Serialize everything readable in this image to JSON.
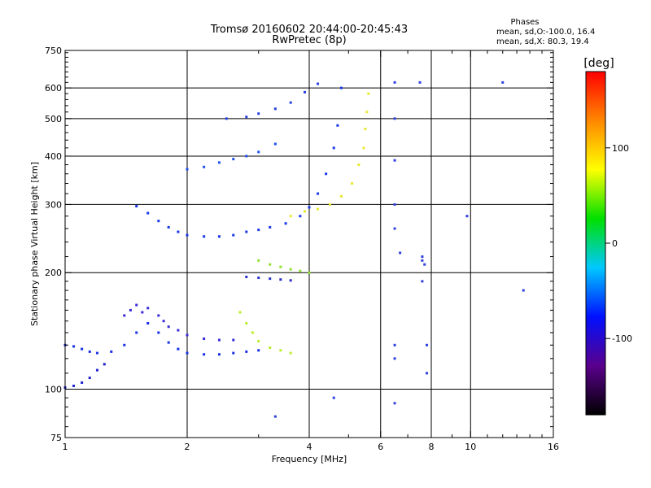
{
  "chart_data": {
    "type": "scatter",
    "title": "Tromsø 20160602 20:44:00-20:45:43",
    "subtitle": "RwPretec (8p)",
    "xlabel": "Frequency [MHz]",
    "ylabel": "Stationary phase Virtual Height [km]",
    "x_scale": "log",
    "y_scale": "log",
    "xlim": [
      1,
      16
    ],
    "ylim": [
      75,
      750
    ],
    "x_ticks": [
      1,
      2,
      4,
      6,
      8,
      10,
      16
    ],
    "y_ticks": [
      75,
      100,
      200,
      300,
      400,
      500,
      600,
      750
    ],
    "grid": true,
    "info": {
      "heading": "Phases",
      "line1": "mean, sd,O:-100.0, 16.4",
      "line2": "mean, sd,X:  80.3, 19.4"
    },
    "colorbar": {
      "label": "[deg]",
      "range": [
        -180,
        180
      ],
      "ticks": [
        100,
        0,
        -100
      ],
      "colormap": [
        "#000000",
        "#5a008c",
        "#0010ff",
        "#00c8ff",
        "#00e000",
        "#ffff00",
        "#ff8800",
        "#ff0000"
      ]
    },
    "series": [
      {
        "description": "O-mode lower F trace",
        "color": "#1830e8",
        "points": [
          [
            1.0,
            130
          ],
          [
            1.05,
            129
          ],
          [
            1.1,
            127
          ],
          [
            1.15,
            125
          ],
          [
            1.2,
            124
          ],
          [
            1.3,
            125
          ],
          [
            1.4,
            130
          ],
          [
            1.5,
            140
          ],
          [
            1.6,
            148
          ],
          [
            1.7,
            140
          ],
          [
            1.8,
            132
          ],
          [
            1.9,
            127
          ],
          [
            2.0,
            124
          ],
          [
            2.2,
            123
          ],
          [
            2.4,
            123
          ],
          [
            2.6,
            124
          ],
          [
            2.8,
            125
          ],
          [
            3.0,
            126
          ]
        ]
      },
      {
        "description": "E-region rise",
        "color": "#2020d0",
        "points": [
          [
            1.0,
            101
          ],
          [
            1.05,
            102
          ],
          [
            1.1,
            104
          ],
          [
            1.15,
            107
          ],
          [
            1.2,
            112
          ],
          [
            1.25,
            116
          ]
        ]
      },
      {
        "description": "Upper cluster 1.4-2.0 MHz",
        "color": "#3a2ad8",
        "points": [
          [
            1.4,
            155
          ],
          [
            1.45,
            160
          ],
          [
            1.5,
            165
          ],
          [
            1.55,
            158
          ],
          [
            1.6,
            162
          ],
          [
            1.7,
            155
          ],
          [
            1.75,
            150
          ],
          [
            1.8,
            145
          ],
          [
            1.9,
            142
          ],
          [
            2.0,
            138
          ],
          [
            2.2,
            135
          ],
          [
            2.4,
            134
          ],
          [
            2.6,
            134
          ]
        ]
      },
      {
        "description": "F2 O-mode trace",
        "color": "#1838e8",
        "points": [
          [
            1.5,
            297
          ],
          [
            1.6,
            285
          ],
          [
            1.7,
            272
          ],
          [
            1.8,
            262
          ],
          [
            1.9,
            255
          ],
          [
            2.0,
            250
          ],
          [
            2.2,
            248
          ],
          [
            2.4,
            248
          ],
          [
            2.6,
            250
          ],
          [
            2.8,
            255
          ],
          [
            3.0,
            258
          ],
          [
            3.2,
            262
          ],
          [
            3.5,
            268
          ],
          [
            3.8,
            280
          ],
          [
            4.0,
            295
          ],
          [
            4.2,
            320
          ],
          [
            4.4,
            360
          ],
          [
            4.6,
            420
          ],
          [
            4.7,
            480
          ],
          [
            4.8,
            600
          ]
        ]
      },
      {
        "description": "F2 X-mode trace",
        "color": "#e8e830",
        "points": [
          [
            3.6,
            280
          ],
          [
            3.9,
            288
          ],
          [
            4.2,
            292
          ],
          [
            4.5,
            300
          ],
          [
            4.8,
            315
          ],
          [
            5.1,
            340
          ],
          [
            5.3,
            380
          ],
          [
            5.45,
            420
          ],
          [
            5.5,
            470
          ],
          [
            5.55,
            520
          ],
          [
            5.6,
            580
          ]
        ]
      },
      {
        "description": "Second-hop trace",
        "color": "#2050f0",
        "points": [
          [
            2.0,
            370
          ],
          [
            2.2,
            375
          ],
          [
            2.4,
            385
          ],
          [
            2.6,
            393
          ],
          [
            2.8,
            400
          ],
          [
            3.0,
            410
          ],
          [
            3.3,
            430
          ]
        ]
      },
      {
        "description": "Third-hop trace",
        "color": "#2a40e0",
        "points": [
          [
            2.5,
            500
          ],
          [
            2.8,
            505
          ],
          [
            3.0,
            515
          ],
          [
            3.3,
            530
          ],
          [
            3.6,
            550
          ],
          [
            3.9,
            585
          ],
          [
            4.2,
            615
          ]
        ]
      },
      {
        "description": "Middle blob 200 km (blue)",
        "color": "#2a30c8",
        "points": [
          [
            2.8,
            195
          ],
          [
            3.0,
            194
          ],
          [
            3.2,
            193
          ],
          [
            3.4,
            192
          ],
          [
            3.6,
            191
          ]
        ]
      },
      {
        "description": "Middle blob 200 km (green)",
        "color": "#90e030",
        "points": [
          [
            3.0,
            215
          ],
          [
            3.2,
            210
          ],
          [
            3.4,
            207
          ],
          [
            3.6,
            204
          ],
          [
            3.8,
            202
          ],
          [
            4.0,
            200
          ]
        ]
      },
      {
        "description": "Low trace 125 km (yellow-green)",
        "color": "#b8f028",
        "points": [
          [
            2.7,
            158
          ],
          [
            2.8,
            148
          ],
          [
            2.9,
            140
          ],
          [
            3.0,
            133
          ],
          [
            3.2,
            128
          ],
          [
            3.4,
            126
          ],
          [
            3.6,
            124
          ]
        ]
      },
      {
        "description": "Scattered points",
        "color": "#3040e0",
        "points": [
          [
            6.5,
            620
          ],
          [
            7.5,
            620
          ],
          [
            6.5,
            500
          ],
          [
            6.5,
            390
          ],
          [
            6.5,
            300
          ],
          [
            6.5,
            260
          ],
          [
            6.7,
            225
          ],
          [
            7.6,
            220
          ],
          [
            7.6,
            215
          ],
          [
            7.7,
            210
          ],
          [
            7.6,
            190
          ],
          [
            7.8,
            130
          ],
          [
            7.8,
            110
          ],
          [
            6.5,
            92
          ],
          [
            6.5,
            130
          ],
          [
            6.5,
            120
          ],
          [
            9.8,
            280
          ],
          [
            13.5,
            180
          ],
          [
            12.0,
            620
          ],
          [
            4.6,
            95
          ],
          [
            3.3,
            85
          ]
        ]
      }
    ]
  }
}
